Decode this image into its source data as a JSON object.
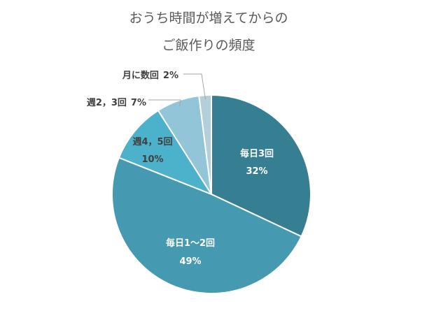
{
  "chart_data": {
    "type": "pie",
    "title_lines": [
      "おうち時間が増えてからの",
      "ご飯作りの頻度"
    ],
    "slices": [
      {
        "category": "毎日3回",
        "value": 32,
        "value_label": "32%",
        "color": "#367f93"
      },
      {
        "category": "毎日1〜2回",
        "value": 49,
        "value_label": "49%",
        "color": "#4599b0"
      },
      {
        "category": "週4，5回",
        "value": 10,
        "value_label": "10%",
        "color": "#4cb1cb"
      },
      {
        "category": "週2，3回",
        "value": 7,
        "value_label": "7%",
        "color": "#93c5d9"
      },
      {
        "category": "月に数回",
        "value": 2,
        "value_label": "2%",
        "color": "#b4cfdc"
      }
    ],
    "start_angle": "12 o'clock",
    "direction": "clockwise",
    "legend": "none"
  }
}
